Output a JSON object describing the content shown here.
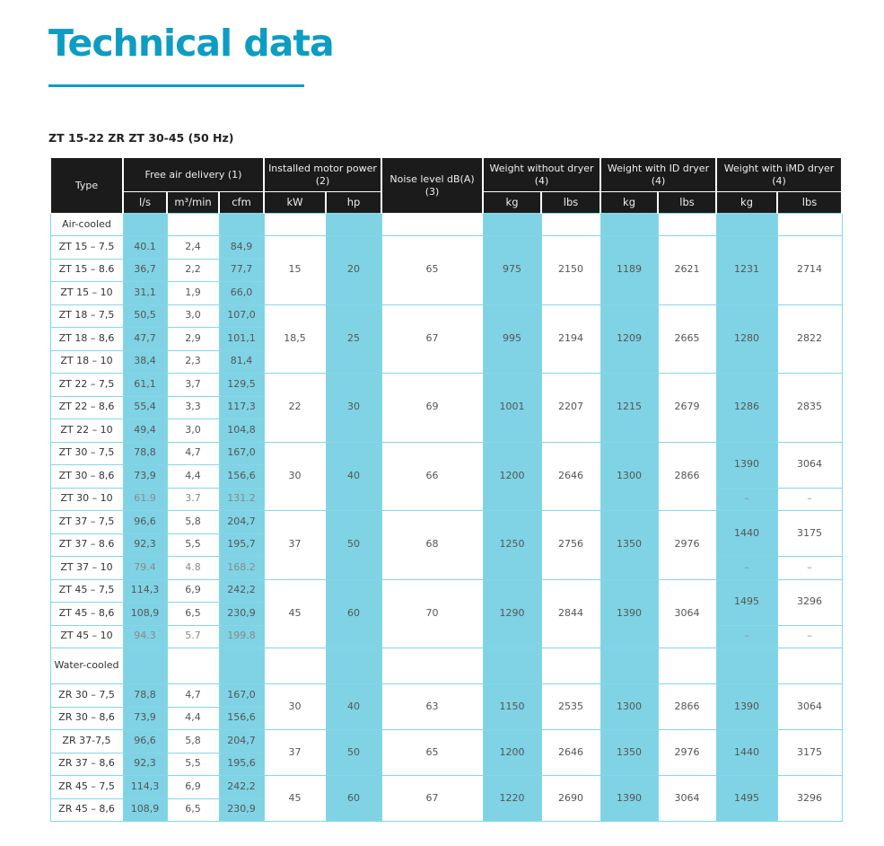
{
  "page": {
    "title": "Technical data",
    "subtitle": "ZT 15-22 ZR ZT 30-45 (50 Hz)"
  },
  "header": {
    "type": "Type",
    "free_air": "Free air delivery (1)",
    "motor": "Installed motor power (2)",
    "noise": "Noise level dB(A) (3)",
    "w_no_dryer": "Weight without dryer (4)",
    "w_id_dryer": "Weight with ID dryer (4)",
    "w_imd_dryer": "Weight with iMD dryer (4)",
    "units": {
      "ls": "l/s",
      "m3min": "m³/min",
      "cfm": "cfm",
      "kw": "kW",
      "hp": "hp",
      "kg1": "kg",
      "lbs1": "lbs",
      "kg2": "kg",
      "lbs2": "lbs",
      "kg3": "kg",
      "lbs3": "lbs"
    }
  },
  "categories": {
    "air": "Air-cooled",
    "water": "Water-cooled"
  },
  "rows": [
    {
      "type": "ZT 15 – 7.5",
      "ls": "40.1",
      "m3": "2,4",
      "cfm": "84,9"
    },
    {
      "type": "ZT 15 – 8.6",
      "ls": "36,7",
      "m3": "2,2",
      "cfm": "77,7"
    },
    {
      "type": "ZT 15 – 10",
      "ls": "31,1",
      "m3": "1,9",
      "cfm": "66,0"
    },
    {
      "type": "ZT 18 – 7,5",
      "ls": "50,5",
      "m3": "3,0",
      "cfm": "107,0"
    },
    {
      "type": "ZT 18 – 8,6",
      "ls": "47,7",
      "m3": "2,9",
      "cfm": "101,1"
    },
    {
      "type": "ZT 18 – 10",
      "ls": "38,4",
      "m3": "2,3",
      "cfm": "81,4"
    },
    {
      "type": "ZT 22 – 7,5",
      "ls": "61,1",
      "m3": "3,7",
      "cfm": "129,5"
    },
    {
      "type": "ZT 22 – 8,6",
      "ls": "55,4",
      "m3": "3,3",
      "cfm": "117,3"
    },
    {
      "type": "ZT 22 – 10",
      "ls": "49,4",
      "m3": "3,0",
      "cfm": "104,8"
    },
    {
      "type": "ZT 30 – 7,5",
      "ls": "78,8",
      "m3": "4,7",
      "cfm": "167,0"
    },
    {
      "type": "ZT 30 – 8,6",
      "ls": "73,9",
      "m3": "4,4",
      "cfm": "156,6"
    },
    {
      "type": "ZT 30 – 10",
      "ls": "61.9",
      "m3": "3.7",
      "cfm": "131.2"
    },
    {
      "type": "ZT 37 – 7,5",
      "ls": "96,6",
      "m3": "5,8",
      "cfm": "204,7"
    },
    {
      "type": "ZT 37 – 8.6",
      "ls": "92,3",
      "m3": "5,5",
      "cfm": "195,7"
    },
    {
      "type": "ZT 37 – 10",
      "ls": "79.4",
      "m3": "4.8",
      "cfm": "168.2"
    },
    {
      "type": "ZT 45 – 7,5",
      "ls": "114,3",
      "m3": "6,9",
      "cfm": "242,2"
    },
    {
      "type": "ZT 45 – 8,6",
      "ls": "108,9",
      "m3": "6,5",
      "cfm": "230,9"
    },
    {
      "type": "ZT 45 – 10",
      "ls": "94.3",
      "m3": "5.7",
      "cfm": "199.8"
    },
    {
      "type": "ZR 30 – 7,5",
      "ls": "78,8",
      "m3": "4,7",
      "cfm": "167,0"
    },
    {
      "type": "ZR 30 – 8,6",
      "ls": "73,9",
      "m3": "4,4",
      "cfm": "156,6"
    },
    {
      "type": "ZR 37-7,5",
      "ls": "96,6",
      "m3": "5,8",
      "cfm": "204,7"
    },
    {
      "type": "ZR 37 – 8,6",
      "ls": "92,3",
      "m3": "5,5",
      "cfm": "195,6"
    },
    {
      "type": "ZR 45 – 7,5",
      "ls": "114,3",
      "m3": "6,9",
      "cfm": "242,2"
    },
    {
      "type": "ZR 45 – 8,6",
      "ls": "108,9",
      "m3": "6,5",
      "cfm": "230,9"
    }
  ],
  "groups": [
    {
      "kw": "15",
      "hp": "20",
      "noise": "65",
      "kg1": "975",
      "lbs1": "2150",
      "kg2": "1189",
      "lbs2": "2621",
      "kg3": "1231",
      "lbs3": "2714"
    },
    {
      "kw": "18,5",
      "hp": "25",
      "noise": "67",
      "kg1": "995",
      "lbs1": "2194",
      "kg2": "1209",
      "lbs2": "2665",
      "kg3": "1280",
      "lbs3": "2822"
    },
    {
      "kw": "22",
      "hp": "30",
      "noise": "69",
      "kg1": "1001",
      "lbs1": "2207",
      "kg2": "1215",
      "lbs2": "2679",
      "kg3": "1286",
      "lbs3": "2835"
    },
    {
      "kw": "30",
      "hp": "40",
      "noise": "66",
      "kg1": "1200",
      "lbs1": "2646",
      "kg2": "1300",
      "lbs2": "2866",
      "kg3": "1390",
      "lbs3": "3064",
      "kg3_10": "–",
      "lbs3_10": "–"
    },
    {
      "kw": "37",
      "hp": "50",
      "noise": "68",
      "kg1": "1250",
      "lbs1": "2756",
      "kg2": "1350",
      "lbs2": "2976",
      "kg3": "1440",
      "lbs3": "3175",
      "kg3_10": "–",
      "lbs3_10": "–"
    },
    {
      "kw": "45",
      "hp": "60",
      "noise": "70",
      "kg1": "1290",
      "lbs1": "2844",
      "kg2": "1390",
      "lbs2": "3064",
      "kg3": "1495",
      "lbs3": "3296",
      "kg3_10": "–",
      "lbs3_10": "–"
    },
    {
      "kw": "30",
      "hp": "40",
      "noise": "63",
      "kg1": "1150",
      "lbs1": "2535",
      "kg2": "1300",
      "lbs2": "2866",
      "kg3": "1390",
      "lbs3": "3064"
    },
    {
      "kw": "37",
      "hp": "50",
      "noise": "65",
      "kg1": "1200",
      "lbs1": "2646",
      "kg2": "1350",
      "lbs2": "2976",
      "kg3": "1440",
      "lbs3": "3175"
    },
    {
      "kw": "45",
      "hp": "60",
      "noise": "67",
      "kg1": "1220",
      "lbs1": "2690",
      "kg2": "1390",
      "lbs2": "3064",
      "kg3": "1495",
      "lbs3": "3296"
    }
  ],
  "colors": {
    "accent": "#0d9cc2",
    "highlight": "#7fd3e4",
    "header_bg": "#1b1b1b"
  }
}
